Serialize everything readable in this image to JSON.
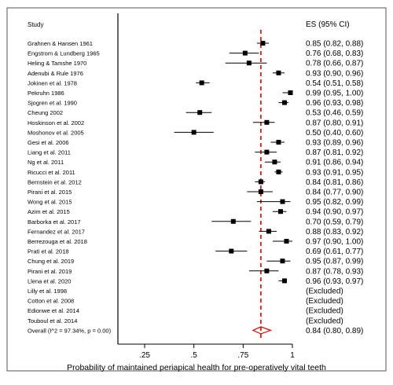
{
  "chart_data": {
    "type": "forest",
    "study_header": "Study",
    "es_header": "ES (95% CI)",
    "xlabel": "Probability of maintained periapical health for pre-operatively vital teeth",
    "x_ticks": [
      ".25",
      ".5",
      ".75",
      "1"
    ],
    "x_tick_values": [
      0.25,
      0.5,
      0.75,
      1.0
    ],
    "xlim": [
      0.25,
      1.0
    ],
    "reference_line": 0.0,
    "overall_line": 0.84,
    "studies": [
      {
        "label": "Grahnen & Hansen 1961",
        "es": 0.85,
        "lo": 0.82,
        "hi": 0.88,
        "text": "0.85 (0.82, 0.88)"
      },
      {
        "label": "Engstrom & Lundberg 1965",
        "es": 0.76,
        "lo": 0.68,
        "hi": 0.83,
        "text": "0.76 (0.68, 0.83)"
      },
      {
        "label": "Heling & Tamshe 1970",
        "es": 0.78,
        "lo": 0.66,
        "hi": 0.87,
        "text": "0.78 (0.66, 0.87)"
      },
      {
        "label": "Adenubi & Rule 1976",
        "es": 0.93,
        "lo": 0.9,
        "hi": 0.96,
        "text": "0.93 (0.90, 0.96)"
      },
      {
        "label": "Jokinen et al. 1978",
        "es": 0.54,
        "lo": 0.51,
        "hi": 0.58,
        "text": "0.54 (0.51, 0.58)"
      },
      {
        "label": "Pekruhn 1986",
        "es": 0.99,
        "lo": 0.95,
        "hi": 1.0,
        "text": "0.99 (0.95, 1.00)"
      },
      {
        "label": "Sjogren et al. 1990",
        "es": 0.96,
        "lo": 0.93,
        "hi": 0.98,
        "text": "0.96 (0.93, 0.98)"
      },
      {
        "label": "Cheung 2002",
        "es": 0.53,
        "lo": 0.46,
        "hi": 0.59,
        "text": "0.53 (0.46, 0.59)"
      },
      {
        "label": "Hoskinson et al. 2002",
        "es": 0.87,
        "lo": 0.8,
        "hi": 0.91,
        "text": "0.87 (0.80, 0.91)"
      },
      {
        "label": "Moshonov et al. 2005",
        "es": 0.5,
        "lo": 0.4,
        "hi": 0.6,
        "text": "0.50 (0.40, 0.60)"
      },
      {
        "label": "Gesi et al. 2006",
        "es": 0.93,
        "lo": 0.89,
        "hi": 0.96,
        "text": "0.93 (0.89, 0.96)"
      },
      {
        "label": "Liang et al. 2011",
        "es": 0.87,
        "lo": 0.81,
        "hi": 0.92,
        "text": "0.87 (0.81, 0.92)"
      },
      {
        "label": "Ng et al. 2011",
        "es": 0.91,
        "lo": 0.86,
        "hi": 0.94,
        "text": "0.91 (0.86, 0.94)"
      },
      {
        "label": "Ricucci et al. 2011",
        "es": 0.93,
        "lo": 0.91,
        "hi": 0.95,
        "text": "0.93 (0.91, 0.95)"
      },
      {
        "label": "Bernstein et al. 2012",
        "es": 0.84,
        "lo": 0.81,
        "hi": 0.86,
        "text": "0.84 (0.81, 0.86)"
      },
      {
        "label": "Pirani et al. 2015",
        "es": 0.84,
        "lo": 0.77,
        "hi": 0.9,
        "text": "0.84 (0.77, 0.90)"
      },
      {
        "label": "Wong et al. 2015",
        "es": 0.95,
        "lo": 0.82,
        "hi": 0.99,
        "text": "0.95 (0.82, 0.99)"
      },
      {
        "label": "Azim et al. 2015",
        "es": 0.94,
        "lo": 0.9,
        "hi": 0.97,
        "text": "0.94 (0.90, 0.97)"
      },
      {
        "label": "Barborka et al. 2017",
        "es": 0.7,
        "lo": 0.59,
        "hi": 0.79,
        "text": "0.70 (0.59, 0.79)"
      },
      {
        "label": "Fernandez et al. 2017",
        "es": 0.88,
        "lo": 0.83,
        "hi": 0.92,
        "text": "0.88 (0.83, 0.92)"
      },
      {
        "label": "Berrezouga et al. 2018",
        "es": 0.97,
        "lo": 0.9,
        "hi": 1.0,
        "text": "0.97 (0.90, 1.00)"
      },
      {
        "label": "Prati et al. 2018",
        "es": 0.69,
        "lo": 0.61,
        "hi": 0.77,
        "text": "0.69 (0.61, 0.77)"
      },
      {
        "label": "Chung et al. 2019",
        "es": 0.95,
        "lo": 0.87,
        "hi": 0.99,
        "text": "0.95 (0.87, 0.99)"
      },
      {
        "label": "Pirani et al. 2019",
        "es": 0.87,
        "lo": 0.78,
        "hi": 0.93,
        "text": "0.87 (0.78, 0.93)"
      },
      {
        "label": "Llena et al. 2020",
        "es": 0.96,
        "lo": 0.93,
        "hi": 0.97,
        "text": "0.96 (0.93, 0.97)"
      },
      {
        "label": "Lilly et al. 1998",
        "es": null,
        "lo": null,
        "hi": null,
        "text": "(Excluded)"
      },
      {
        "label": "Cotton et al. 2008",
        "es": null,
        "lo": null,
        "hi": null,
        "text": "(Excluded)"
      },
      {
        "label": "Edionwe et al. 2014",
        "es": null,
        "lo": null,
        "hi": null,
        "text": "(Excluded)"
      },
      {
        "label": "Touboul et al. 2014",
        "es": null,
        "lo": null,
        "hi": null,
        "text": "(Excluded)"
      }
    ],
    "overall": {
      "label": "Overall  (I^2 = 97.34%, p = 0.00)",
      "es": 0.84,
      "lo": 0.8,
      "hi": 0.89,
      "text": "0.84 (0.80, 0.89)"
    },
    "colors": {
      "background": "#ffffff",
      "frame": "#555555",
      "marker": "#000000",
      "overall_line": "#e00000",
      "diamond": "#e00000"
    }
  }
}
